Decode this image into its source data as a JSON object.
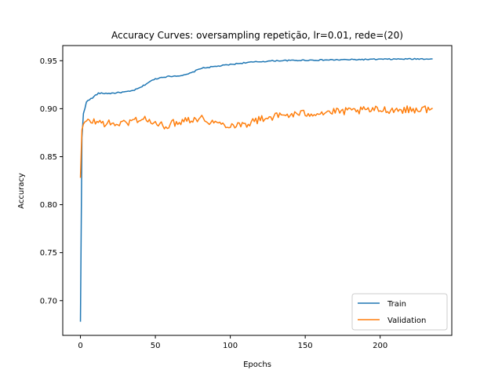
{
  "chart_data": {
    "type": "line",
    "title": "Accuracy Curves: oversampling repetição, lr=0.01, rede=(20)",
    "xlabel": "Epochs",
    "ylabel": "Accuracy",
    "xlim": [
      -11.8,
      247.8
    ],
    "ylim": [
      0.6638,
      0.9658
    ],
    "xticks": [
      0,
      50,
      100,
      150,
      200
    ],
    "yticks": [
      0.7,
      0.75,
      0.8,
      0.85,
      0.9,
      0.95
    ],
    "ytick_labels": [
      "0.70",
      "0.75",
      "0.80",
      "0.85",
      "0.90",
      "0.95"
    ],
    "grid": false,
    "legend_position": "lower right",
    "series": [
      {
        "name": "Train",
        "color": "#1f77b4",
        "keypoints": [
          [
            0,
            0.678
          ],
          [
            1,
            0.87
          ],
          [
            2,
            0.895
          ],
          [
            3,
            0.9
          ],
          [
            4,
            0.907
          ],
          [
            5,
            0.909
          ],
          [
            8,
            0.911
          ],
          [
            10,
            0.914
          ],
          [
            12,
            0.916
          ],
          [
            20,
            0.916
          ],
          [
            27,
            0.917
          ],
          [
            33,
            0.918
          ],
          [
            37,
            0.92
          ],
          [
            40,
            0.922
          ],
          [
            43,
            0.925
          ],
          [
            46,
            0.928
          ],
          [
            50,
            0.931
          ],
          [
            55,
            0.933
          ],
          [
            62,
            0.934
          ],
          [
            70,
            0.935
          ],
          [
            75,
            0.938
          ],
          [
            80,
            0.942
          ],
          [
            85,
            0.943
          ],
          [
            90,
            0.944
          ],
          [
            100,
            0.946
          ],
          [
            110,
            0.948
          ],
          [
            120,
            0.949
          ],
          [
            130,
            0.95
          ],
          [
            150,
            0.9505
          ],
          [
            175,
            0.951
          ],
          [
            200,
            0.9515
          ],
          [
            220,
            0.9518
          ],
          [
            235,
            0.952
          ]
        ]
      },
      {
        "name": "Validation",
        "color": "#ff7f0e",
        "keypoints": [
          [
            0,
            0.828
          ],
          [
            1,
            0.878
          ],
          [
            2,
            0.884
          ],
          [
            4,
            0.886
          ],
          [
            8,
            0.887
          ],
          [
            12,
            0.886
          ],
          [
            20,
            0.884
          ],
          [
            30,
            0.885
          ],
          [
            36,
            0.888
          ],
          [
            40,
            0.89
          ],
          [
            45,
            0.888
          ],
          [
            50,
            0.884
          ],
          [
            55,
            0.882
          ],
          [
            60,
            0.884
          ],
          [
            65,
            0.886
          ],
          [
            70,
            0.889
          ],
          [
            80,
            0.89
          ],
          [
            85,
            0.888
          ],
          [
            90,
            0.885
          ],
          [
            100,
            0.883
          ],
          [
            110,
            0.884
          ],
          [
            118,
            0.888
          ],
          [
            125,
            0.891
          ],
          [
            135,
            0.893
          ],
          [
            150,
            0.895
          ],
          [
            160,
            0.896
          ],
          [
            175,
            0.897
          ],
          [
            200,
            0.899
          ],
          [
            220,
            0.899
          ],
          [
            235,
            0.9
          ]
        ],
        "noise_amplitude": 0.004
      }
    ]
  }
}
